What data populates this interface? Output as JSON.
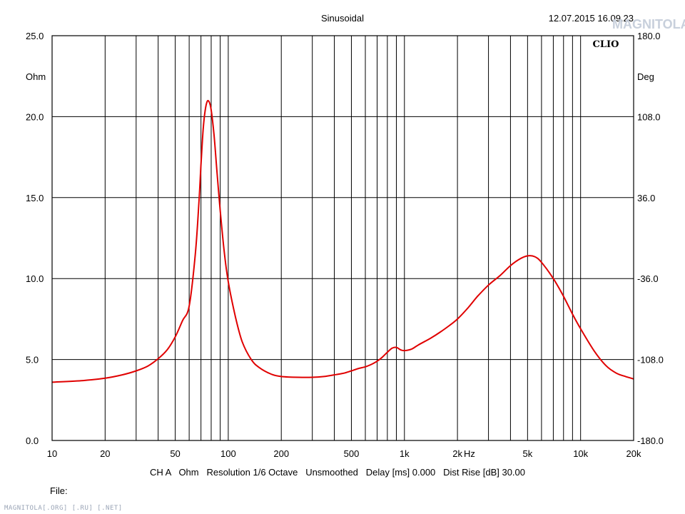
{
  "header": {
    "mode": "Sinusoidal",
    "timestamp": "12.07.2015 16.09.23",
    "brand": "CLIO",
    "logo_text": "MAGNITOLA"
  },
  "footer": {
    "settings_line": "CH A   Ohm   Resolution 1/6 Octave   Unsmoothed   Delay [ms] 0.000   Dist Rise [dB] 30.00",
    "file_label": "File:",
    "watermark": "MAGNITOLA[.ORG] [.RU] [.NET]"
  },
  "chart_data": {
    "type": "line",
    "x_scale": "log",
    "xlim": [
      10,
      20000
    ],
    "x_unit": "Hz",
    "x_ticks": [
      {
        "v": 10,
        "label": "10"
      },
      {
        "v": 20,
        "label": "20"
      },
      {
        "v": 50,
        "label": "50"
      },
      {
        "v": 100,
        "label": "100"
      },
      {
        "v": 200,
        "label": "200"
      },
      {
        "v": 500,
        "label": "500"
      },
      {
        "v": 1000,
        "label": "1k"
      },
      {
        "v": 2000,
        "label": "2k"
      },
      {
        "v": 5000,
        "label": "5k"
      },
      {
        "v": 10000,
        "label": "10k"
      },
      {
        "v": 20000,
        "label": "20k"
      }
    ],
    "ylabel_left": "Ohm",
    "ylim_left": [
      0,
      25
    ],
    "y_ticks_left": [
      "0.0",
      "5.0",
      "10.0",
      "15.0",
      "20.0",
      "25.0"
    ],
    "ylabel_right": "Deg",
    "ylim_right": [
      -180,
      180
    ],
    "y_ticks_right": [
      "-180.0",
      "-108.0",
      "-36.0",
      "36.0",
      "108.0",
      "180.0"
    ],
    "grid": true,
    "series": [
      {
        "color": "#e00000",
        "x": [
          10,
          15,
          20,
          25,
          30,
          35,
          40,
          45,
          50,
          55,
          60,
          65,
          68,
          70,
          72,
          74,
          76,
          78,
          80,
          83,
          86,
          90,
          95,
          100,
          110,
          120,
          135,
          150,
          175,
          200,
          250,
          300,
          350,
          400,
          450,
          500,
          550,
          600,
          650,
          700,
          750,
          800,
          850,
          900,
          950,
          1000,
          1100,
          1200,
          1400,
          1600,
          1800,
          2000,
          2300,
          2600,
          3000,
          3500,
          4000,
          4500,
          5000,
          5500,
          6000,
          7000,
          8000,
          9000,
          10000,
          12000,
          14000,
          16000,
          18000,
          20000
        ],
        "values": [
          3.6,
          3.7,
          3.85,
          4.05,
          4.3,
          4.6,
          5.05,
          5.6,
          6.4,
          7.4,
          8.3,
          11.5,
          14.5,
          17.0,
          19.2,
          20.4,
          20.95,
          20.9,
          20.4,
          18.9,
          16.8,
          14.2,
          11.6,
          9.8,
          7.6,
          6.1,
          5.0,
          4.5,
          4.1,
          3.95,
          3.9,
          3.9,
          3.95,
          4.05,
          4.15,
          4.3,
          4.45,
          4.55,
          4.7,
          4.9,
          5.15,
          5.45,
          5.7,
          5.75,
          5.6,
          5.55,
          5.65,
          5.9,
          6.3,
          6.7,
          7.1,
          7.5,
          8.2,
          8.9,
          9.6,
          10.2,
          10.8,
          11.2,
          11.4,
          11.35,
          11.0,
          10.0,
          8.9,
          7.8,
          6.9,
          5.5,
          4.6,
          4.15,
          3.95,
          3.8
        ]
      }
    ]
  }
}
